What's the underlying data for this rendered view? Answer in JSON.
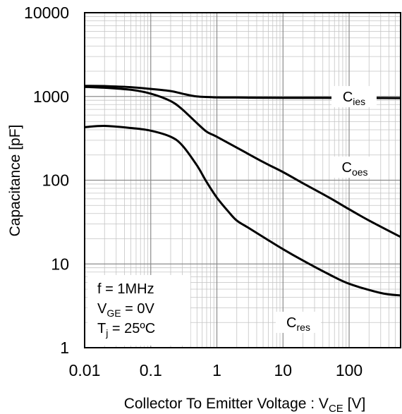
{
  "chart_data": {
    "type": "line",
    "x_scale": "log",
    "y_scale": "log",
    "xlim": [
      0.01,
      600
    ],
    "ylim": [
      1,
      10000
    ],
    "grid": true,
    "x_ticks": [
      "0.01",
      "0.1",
      "1",
      "10",
      "100"
    ],
    "y_ticks": [
      "1",
      "10",
      "100",
      "1000",
      "10000"
    ],
    "xlabel": {
      "main": "Collector To Emitter Voltage : V",
      "sub": "CE",
      "unit": " [V]"
    },
    "ylabel": "Capacitance [pF]",
    "series": [
      {
        "name": {
          "main": "C",
          "sub": "ies"
        },
        "points": [
          [
            0.01,
            1340
          ],
          [
            0.02,
            1330
          ],
          [
            0.05,
            1290
          ],
          [
            0.1,
            1230
          ],
          [
            0.2,
            1160
          ],
          [
            0.3,
            1080
          ],
          [
            0.5,
            1000
          ],
          [
            1,
            975
          ],
          [
            2,
            970
          ],
          [
            5,
            965
          ],
          [
            10,
            963
          ],
          [
            100,
            960
          ],
          [
            600,
            955
          ]
        ]
      },
      {
        "name": {
          "main": "C",
          "sub": "oes"
        },
        "points": [
          [
            0.01,
            1300
          ],
          [
            0.02,
            1270
          ],
          [
            0.05,
            1200
          ],
          [
            0.1,
            1080
          ],
          [
            0.2,
            880
          ],
          [
            0.3,
            700
          ],
          [
            0.5,
            480
          ],
          [
            0.7,
            380
          ],
          [
            1,
            330
          ],
          [
            2,
            245
          ],
          [
            5,
            165
          ],
          [
            10,
            125
          ],
          [
            20,
            92
          ],
          [
            50,
            62
          ],
          [
            100,
            45
          ],
          [
            200,
            33
          ],
          [
            600,
            21
          ]
        ]
      },
      {
        "name": {
          "main": "C",
          "sub": "res"
        },
        "points": [
          [
            0.01,
            430
          ],
          [
            0.02,
            445
          ],
          [
            0.05,
            420
          ],
          [
            0.1,
            390
          ],
          [
            0.2,
            330
          ],
          [
            0.3,
            260
          ],
          [
            0.5,
            150
          ],
          [
            0.7,
            95
          ],
          [
            1,
            62
          ],
          [
            1.5,
            42
          ],
          [
            2,
            33
          ],
          [
            3,
            27
          ],
          [
            5,
            21
          ],
          [
            10,
            15
          ],
          [
            20,
            11
          ],
          [
            50,
            7.5
          ],
          [
            100,
            5.8
          ],
          [
            300,
            4.5
          ],
          [
            600,
            4.2
          ]
        ]
      }
    ],
    "conditions": [
      {
        "main": "f = 1MHz",
        "sub": "",
        "tail": ""
      },
      {
        "main": "V",
        "sub": "GE",
        "tail": " = 0V"
      },
      {
        "main": "T",
        "sub": "j",
        "tail": " = 25ºC"
      }
    ]
  }
}
